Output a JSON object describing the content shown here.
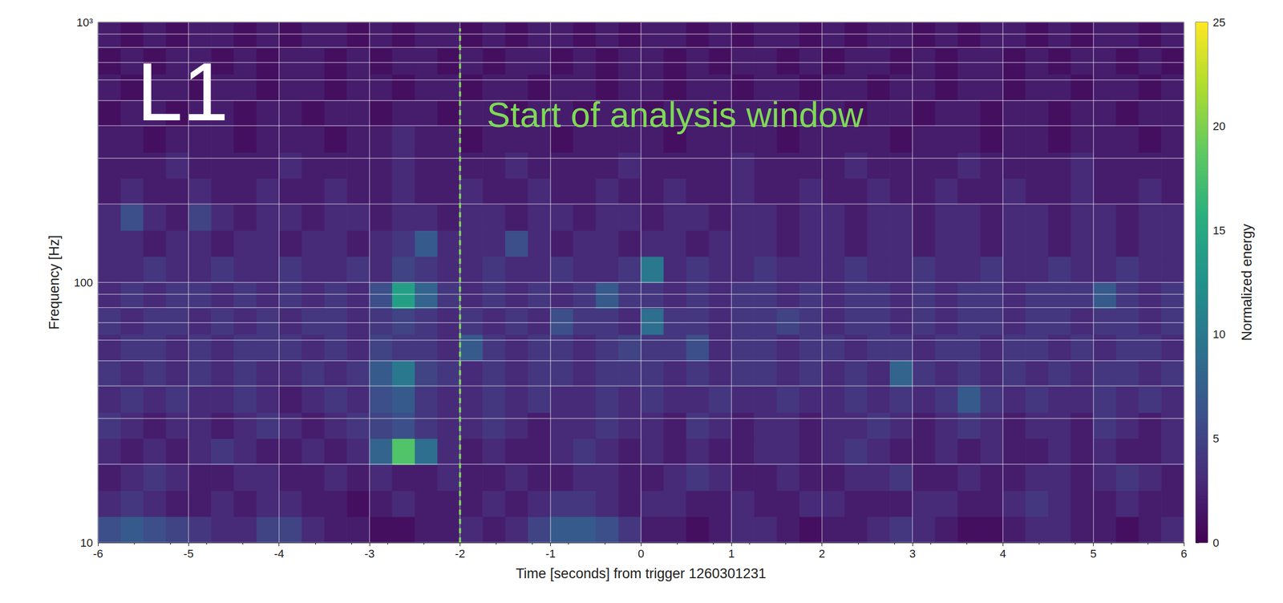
{
  "chart_data": {
    "type": "heatmap",
    "xlabel": "Time [seconds] from trigger 1260301231",
    "ylabel": "Frequency [Hz]",
    "log": "y",
    "grid": true,
    "xlim": [
      -6,
      6
    ],
    "xticks": [
      -6,
      -5,
      -4,
      -3,
      -2,
      -1,
      0,
      1,
      2,
      3,
      4,
      5,
      6
    ],
    "ylim": [
      10,
      1000
    ],
    "yticks": [
      10,
      100,
      {
        "value": 1000,
        "label": "10³"
      }
    ],
    "y_minor": [
      20,
      30,
      40,
      50,
      60,
      70,
      80,
      90,
      200,
      300,
      400,
      500,
      600,
      700,
      800,
      900
    ],
    "x_edges": [
      -6,
      -5.75,
      -5.5,
      -5.25,
      -5,
      -4.75,
      -4.5,
      -4.25,
      -4,
      -3.75,
      -3.5,
      -3.25,
      -3,
      -2.75,
      -2.5,
      -2.25,
      -2,
      -1.75,
      -1.5,
      -1.25,
      -1,
      -0.75,
      -0.5,
      -0.25,
      0,
      0.25,
      0.5,
      0.75,
      1,
      1.25,
      1.5,
      1.75,
      2,
      2.25,
      2.5,
      2.75,
      3,
      3.25,
      3.5,
      3.75,
      4,
      4.25,
      4.5,
      4.75,
      5,
      5.25,
      5.5,
      5.75,
      6
    ],
    "y_edges": [
      10,
      12.59,
      15.85,
      19.95,
      25.12,
      31.62,
      39.81,
      50.12,
      63.1,
      79.43,
      100,
      125.9,
      158.5,
      199.5,
      251.2,
      316.2,
      398.1,
      501.2,
      631,
      794.3,
      1000
    ],
    "values": [
      [
        6,
        7,
        6,
        5,
        4,
        3,
        3,
        5,
        5,
        3,
        2,
        2,
        1,
        1,
        2,
        2,
        3,
        2,
        3,
        5,
        7,
        7,
        6,
        4,
        2,
        2,
        1,
        2,
        3,
        3,
        2,
        1,
        2,
        2,
        3,
        4,
        3,
        2,
        1,
        1,
        2,
        3,
        3,
        2,
        2,
        1,
        2,
        3
      ],
      [
        3,
        4,
        3,
        2,
        2,
        3,
        2,
        3,
        3,
        2,
        2,
        1,
        2,
        3,
        2,
        2,
        2,
        3,
        2,
        3,
        4,
        4,
        3,
        2,
        3,
        3,
        2,
        2,
        3,
        2,
        2,
        3,
        3,
        2,
        2,
        2,
        3,
        3,
        2,
        2,
        3,
        4,
        3,
        2,
        2,
        3,
        2,
        2
      ],
      [
        2,
        3,
        4,
        3,
        2,
        2,
        3,
        3,
        2,
        2,
        3,
        2,
        3,
        2,
        2,
        3,
        2,
        2,
        3,
        2,
        2,
        3,
        3,
        2,
        2,
        3,
        4,
        3,
        2,
        2,
        3,
        2,
        2,
        3,
        3,
        4,
        2,
        2,
        3,
        2,
        2,
        3,
        3,
        2,
        3,
        4,
        3,
        2
      ],
      [
        3,
        2,
        3,
        2,
        3,
        4,
        3,
        2,
        2,
        3,
        2,
        3,
        8,
        18,
        9,
        3,
        2,
        3,
        2,
        2,
        3,
        4,
        3,
        2,
        3,
        2,
        3,
        2,
        2,
        3,
        3,
        2,
        3,
        4,
        3,
        2,
        2,
        3,
        2,
        3,
        2,
        2,
        3,
        2,
        3,
        2,
        2,
        3
      ],
      [
        4,
        3,
        2,
        3,
        3,
        2,
        3,
        4,
        3,
        2,
        3,
        4,
        5,
        6,
        4,
        3,
        3,
        4,
        3,
        2,
        3,
        3,
        4,
        3,
        3,
        2,
        4,
        3,
        2,
        3,
        3,
        2,
        3,
        3,
        4,
        3,
        2,
        3,
        4,
        3,
        2,
        3,
        3,
        2,
        4,
        3,
        2,
        3
      ],
      [
        3,
        4,
        3,
        4,
        3,
        3,
        4,
        3,
        2,
        3,
        4,
        3,
        6,
        7,
        4,
        3,
        3,
        4,
        3,
        4,
        3,
        3,
        4,
        3,
        4,
        3,
        3,
        4,
        3,
        3,
        4,
        3,
        3,
        4,
        3,
        4,
        3,
        4,
        7,
        4,
        3,
        4,
        3,
        3,
        4,
        3,
        4,
        3
      ],
      [
        4,
        3,
        4,
        3,
        4,
        3,
        4,
        3,
        3,
        4,
        3,
        4,
        7,
        10,
        5,
        4,
        3,
        4,
        3,
        4,
        4,
        3,
        4,
        4,
        4,
        3,
        4,
        3,
        4,
        4,
        3,
        4,
        3,
        4,
        3,
        8,
        4,
        3,
        4,
        3,
        4,
        3,
        4,
        3,
        4,
        4,
        3,
        4
      ],
      [
        3,
        4,
        4,
        3,
        4,
        3,
        4,
        4,
        4,
        3,
        4,
        3,
        5,
        4,
        4,
        3,
        7,
        4,
        3,
        4,
        4,
        3,
        4,
        5,
        4,
        4,
        6,
        3,
        4,
        4,
        3,
        4,
        4,
        3,
        4,
        4,
        3,
        4,
        4,
        3,
        4,
        4,
        3,
        4,
        3,
        4,
        4,
        3
      ],
      [
        4,
        3,
        4,
        4,
        3,
        4,
        3,
        4,
        3,
        4,
        4,
        3,
        4,
        5,
        4,
        3,
        4,
        3,
        4,
        3,
        6,
        4,
        4,
        3,
        9,
        4,
        4,
        3,
        4,
        4,
        5,
        4,
        3,
        4,
        4,
        3,
        4,
        3,
        4,
        4,
        3,
        4,
        4,
        3,
        4,
        4,
        3,
        4
      ],
      [
        3,
        4,
        3,
        4,
        4,
        3,
        4,
        3,
        4,
        3,
        4,
        3,
        6,
        14,
        8,
        4,
        3,
        4,
        3,
        4,
        3,
        4,
        7,
        4,
        4,
        3,
        4,
        3,
        4,
        4,
        3,
        4,
        3,
        4,
        4,
        3,
        4,
        3,
        4,
        4,
        3,
        4,
        4,
        4,
        7,
        4,
        3,
        4
      ],
      [
        3,
        3,
        4,
        3,
        3,
        4,
        3,
        3,
        4,
        3,
        3,
        4,
        3,
        5,
        4,
        3,
        3,
        4,
        3,
        3,
        4,
        3,
        3,
        4,
        10,
        3,
        4,
        3,
        3,
        4,
        3,
        3,
        3,
        4,
        3,
        3,
        4,
        3,
        3,
        4,
        3,
        3,
        4,
        3,
        3,
        4,
        3,
        3
      ],
      [
        3,
        3,
        2,
        3,
        3,
        2,
        3,
        3,
        2,
        3,
        3,
        2,
        3,
        4,
        7,
        3,
        3,
        3,
        6,
        3,
        2,
        3,
        3,
        2,
        3,
        3,
        2,
        3,
        3,
        3,
        2,
        3,
        3,
        2,
        3,
        3,
        2,
        3,
        3,
        2,
        3,
        3,
        2,
        3,
        3,
        2,
        3,
        3
      ],
      [
        3,
        6,
        3,
        2,
        5,
        3,
        2,
        3,
        3,
        2,
        3,
        3,
        2,
        3,
        3,
        2,
        3,
        3,
        2,
        3,
        3,
        2,
        3,
        3,
        2,
        3,
        3,
        2,
        3,
        3,
        2,
        3,
        3,
        2,
        3,
        3,
        2,
        3,
        3,
        2,
        3,
        3,
        2,
        3,
        3,
        2,
        3,
        3
      ],
      [
        2,
        3,
        2,
        2,
        3,
        2,
        2,
        3,
        2,
        2,
        3,
        2,
        2,
        3,
        2,
        2,
        3,
        2,
        2,
        3,
        2,
        2,
        3,
        2,
        2,
        3,
        2,
        2,
        3,
        2,
        2,
        3,
        2,
        2,
        3,
        2,
        2,
        3,
        2,
        2,
        3,
        2,
        2,
        3,
        2,
        2,
        3,
        2
      ],
      [
        2,
        2,
        2,
        3,
        2,
        2,
        2,
        2,
        3,
        2,
        2,
        2,
        2,
        3,
        2,
        2,
        2,
        2,
        3,
        2,
        2,
        2,
        2,
        3,
        2,
        2,
        2,
        2,
        3,
        2,
        2,
        2,
        2,
        3,
        2,
        2,
        2,
        2,
        3,
        2,
        2,
        2,
        2,
        3,
        2,
        2,
        2,
        2
      ],
      [
        2,
        2,
        1,
        2,
        2,
        2,
        1,
        2,
        2,
        2,
        1,
        2,
        2,
        3,
        2,
        2,
        1,
        2,
        2,
        2,
        1,
        2,
        2,
        2,
        2,
        1,
        2,
        2,
        2,
        2,
        1,
        2,
        2,
        2,
        2,
        1,
        2,
        2,
        2,
        1,
        2,
        2,
        1,
        2,
        2,
        2,
        1,
        2
      ],
      [
        1,
        2,
        2,
        1,
        2,
        2,
        1,
        2,
        2,
        1,
        2,
        2,
        1,
        2,
        2,
        1,
        2,
        2,
        1,
        2,
        2,
        1,
        2,
        2,
        1,
        2,
        2,
        1,
        2,
        2,
        1,
        2,
        2,
        1,
        2,
        2,
        1,
        2,
        2,
        1,
        2,
        2,
        1,
        2,
        2,
        1,
        2,
        2
      ],
      [
        2,
        1,
        2,
        2,
        1,
        2,
        2,
        1,
        2,
        2,
        1,
        2,
        2,
        1,
        2,
        2,
        1,
        2,
        2,
        1,
        2,
        2,
        1,
        2,
        2,
        1,
        2,
        2,
        1,
        2,
        2,
        1,
        2,
        2,
        1,
        2,
        2,
        1,
        2,
        2,
        1,
        2,
        2,
        1,
        2,
        2,
        1,
        2
      ],
      [
        1,
        2,
        1,
        2,
        2,
        1,
        2,
        1,
        2,
        2,
        1,
        2,
        1,
        2,
        2,
        1,
        2,
        1,
        2,
        2,
        1,
        2,
        1,
        2,
        2,
        1,
        2,
        1,
        2,
        2,
        1,
        2,
        1,
        2,
        2,
        1,
        2,
        1,
        2,
        2,
        1,
        2,
        1,
        2,
        2,
        1,
        2,
        1
      ],
      [
        2,
        1,
        2,
        1,
        2,
        2,
        1,
        2,
        1,
        2,
        2,
        1,
        2,
        1,
        2,
        2,
        1,
        2,
        1,
        2,
        2,
        1,
        2,
        1,
        2,
        2,
        1,
        2,
        1,
        2,
        2,
        1,
        2,
        1,
        2,
        2,
        1,
        2,
        1,
        2,
        2,
        1,
        2,
        1,
        2,
        2,
        1,
        2
      ]
    ],
    "colorbar": {
      "label": "Normalized energy",
      "lim": [
        0,
        25
      ],
      "ticks": [
        0,
        5,
        10,
        15,
        20,
        25
      ]
    },
    "annotations": [
      {
        "text": "L1",
        "color": "#ffffff"
      },
      {
        "text": "Start of analysis window",
        "x": -2,
        "color": "#7ed957"
      }
    ]
  }
}
